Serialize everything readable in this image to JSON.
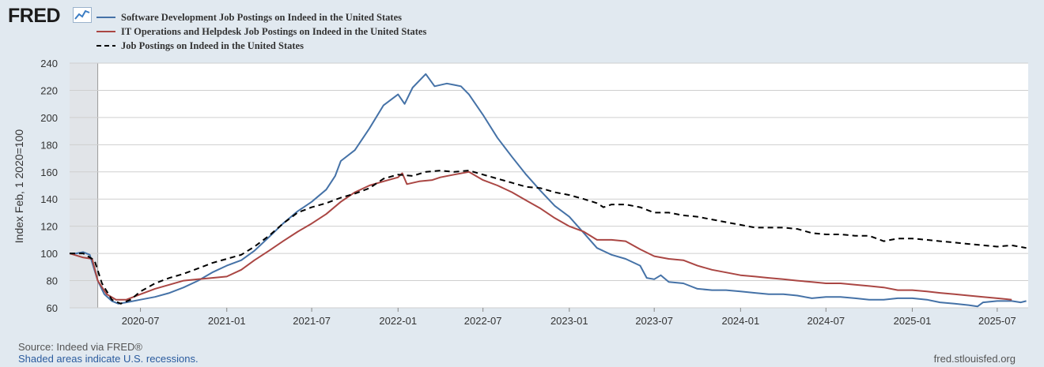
{
  "brand": {
    "logo_text": "FRED",
    "logo_icon": "chart-line-icon"
  },
  "footer": {
    "source": "Source: Indeed via FRED®",
    "recession_note": "Shaded areas indicate U.S. recessions.",
    "site": "fred.stlouisfed.org"
  },
  "chart_data": {
    "type": "line",
    "ylabel": "Index Feb, 1 2020=100",
    "ylim": [
      60,
      240
    ],
    "yticks": [
      60,
      80,
      100,
      120,
      140,
      160,
      180,
      200,
      220,
      240
    ],
    "xlim": [
      "2020-02-01",
      "2025-09-05"
    ],
    "xticks": [
      "2020-07",
      "2021-01",
      "2021-07",
      "2022-01",
      "2022-07",
      "2023-01",
      "2023-07",
      "2024-01",
      "2024-07",
      "2025-01",
      "2025-07"
    ],
    "grid": true,
    "legend_position": "top-left",
    "recessions": [
      {
        "start": "2020-02-01",
        "end": "2020-04-01"
      }
    ],
    "series": [
      {
        "name": "Software Development Job Postings on Indeed in the United States",
        "color": "#4572a7",
        "dash": "solid",
        "points": [
          [
            "2020-02-01",
            100
          ],
          [
            "2020-02-15",
            100
          ],
          [
            "2020-03-01",
            101
          ],
          [
            "2020-03-15",
            99
          ],
          [
            "2020-04-01",
            80
          ],
          [
            "2020-04-15",
            70
          ],
          [
            "2020-05-01",
            65
          ],
          [
            "2020-05-15",
            63
          ],
          [
            "2020-06-01",
            64
          ],
          [
            "2020-07-01",
            66
          ],
          [
            "2020-08-01",
            68
          ],
          [
            "2020-09-01",
            71
          ],
          [
            "2020-10-01",
            75
          ],
          [
            "2020-11-01",
            80
          ],
          [
            "2020-12-01",
            86
          ],
          [
            "2021-01-01",
            91
          ],
          [
            "2021-02-01",
            95
          ],
          [
            "2021-03-01",
            102
          ],
          [
            "2021-04-01",
            112
          ],
          [
            "2021-05-01",
            122
          ],
          [
            "2021-06-01",
            131
          ],
          [
            "2021-07-01",
            138
          ],
          [
            "2021-08-01",
            147
          ],
          [
            "2021-08-20",
            157
          ],
          [
            "2021-09-01",
            168
          ],
          [
            "2021-10-01",
            176
          ],
          [
            "2021-11-01",
            192
          ],
          [
            "2021-12-01",
            209
          ],
          [
            "2022-01-01",
            217
          ],
          [
            "2022-01-15",
            210
          ],
          [
            "2022-02-01",
            222
          ],
          [
            "2022-03-01",
            232
          ],
          [
            "2022-03-20",
            223
          ],
          [
            "2022-04-15",
            225
          ],
          [
            "2022-05-01",
            224
          ],
          [
            "2022-05-15",
            223
          ],
          [
            "2022-06-01",
            217
          ],
          [
            "2022-07-01",
            202
          ],
          [
            "2022-08-01",
            185
          ],
          [
            "2022-09-01",
            171
          ],
          [
            "2022-10-01",
            158
          ],
          [
            "2022-11-01",
            146
          ],
          [
            "2022-12-01",
            135
          ],
          [
            "2023-01-01",
            127
          ],
          [
            "2023-02-01",
            115
          ],
          [
            "2023-03-01",
            104
          ],
          [
            "2023-04-01",
            99
          ],
          [
            "2023-05-01",
            96
          ],
          [
            "2023-06-01",
            91
          ],
          [
            "2023-06-15",
            82
          ],
          [
            "2023-07-01",
            81
          ],
          [
            "2023-07-15",
            84
          ],
          [
            "2023-08-01",
            79
          ],
          [
            "2023-09-01",
            78
          ],
          [
            "2023-10-01",
            74
          ],
          [
            "2023-11-01",
            73
          ],
          [
            "2023-12-01",
            73
          ],
          [
            "2024-01-01",
            72
          ],
          [
            "2024-02-01",
            71
          ],
          [
            "2024-03-01",
            70
          ],
          [
            "2024-04-01",
            70
          ],
          [
            "2024-05-01",
            69
          ],
          [
            "2024-06-01",
            67
          ],
          [
            "2024-07-01",
            68
          ],
          [
            "2024-08-01",
            68
          ],
          [
            "2024-09-01",
            67
          ],
          [
            "2024-10-01",
            66
          ],
          [
            "2024-11-01",
            66
          ],
          [
            "2024-12-01",
            67
          ],
          [
            "2025-01-01",
            67
          ],
          [
            "2025-02-01",
            66
          ],
          [
            "2025-03-01",
            64
          ],
          [
            "2025-04-01",
            63
          ],
          [
            "2025-05-01",
            62
          ],
          [
            "2025-05-20",
            61
          ],
          [
            "2025-06-01",
            64
          ],
          [
            "2025-07-01",
            65
          ],
          [
            "2025-08-01",
            65
          ],
          [
            "2025-08-20",
            64
          ],
          [
            "2025-09-01",
            65
          ]
        ]
      },
      {
        "name": "IT Operations and Helpdesk Job Postings on Indeed in the United States",
        "color": "#aa4643",
        "dash": "solid",
        "points": [
          [
            "2020-02-01",
            100
          ],
          [
            "2020-03-01",
            97
          ],
          [
            "2020-03-20",
            96
          ],
          [
            "2020-04-01",
            80
          ],
          [
            "2020-04-20",
            70
          ],
          [
            "2020-05-10",
            66
          ],
          [
            "2020-06-01",
            66
          ],
          [
            "2020-07-01",
            70
          ],
          [
            "2020-08-01",
            74
          ],
          [
            "2020-09-01",
            77
          ],
          [
            "2020-10-01",
            80
          ],
          [
            "2020-11-01",
            81
          ],
          [
            "2020-12-01",
            82
          ],
          [
            "2021-01-01",
            83
          ],
          [
            "2021-02-01",
            88
          ],
          [
            "2021-03-01",
            95
          ],
          [
            "2021-04-01",
            102
          ],
          [
            "2021-05-01",
            109
          ],
          [
            "2021-06-01",
            116
          ],
          [
            "2021-07-01",
            122
          ],
          [
            "2021-08-01",
            129
          ],
          [
            "2021-09-01",
            138
          ],
          [
            "2021-10-01",
            145
          ],
          [
            "2021-11-01",
            150
          ],
          [
            "2021-12-01",
            153
          ],
          [
            "2022-01-01",
            156
          ],
          [
            "2022-01-10",
            159
          ],
          [
            "2022-01-20",
            151
          ],
          [
            "2022-02-15",
            153
          ],
          [
            "2022-03-15",
            154
          ],
          [
            "2022-04-01",
            156
          ],
          [
            "2022-05-01",
            158
          ],
          [
            "2022-06-01",
            160
          ],
          [
            "2022-07-01",
            154
          ],
          [
            "2022-08-01",
            150
          ],
          [
            "2022-09-01",
            145
          ],
          [
            "2022-10-01",
            139
          ],
          [
            "2022-11-01",
            133
          ],
          [
            "2022-12-01",
            126
          ],
          [
            "2023-01-01",
            120
          ],
          [
            "2023-02-01",
            116
          ],
          [
            "2023-03-01",
            110
          ],
          [
            "2023-04-01",
            110
          ],
          [
            "2023-05-01",
            109
          ],
          [
            "2023-06-01",
            103
          ],
          [
            "2023-07-01",
            98
          ],
          [
            "2023-08-01",
            96
          ],
          [
            "2023-09-01",
            95
          ],
          [
            "2023-10-01",
            91
          ],
          [
            "2023-11-01",
            88
          ],
          [
            "2023-12-01",
            86
          ],
          [
            "2024-01-01",
            84
          ],
          [
            "2024-02-01",
            83
          ],
          [
            "2024-03-01",
            82
          ],
          [
            "2024-04-01",
            81
          ],
          [
            "2024-05-01",
            80
          ],
          [
            "2024-06-01",
            79
          ],
          [
            "2024-07-01",
            78
          ],
          [
            "2024-08-01",
            78
          ],
          [
            "2024-09-01",
            77
          ],
          [
            "2024-10-01",
            76
          ],
          [
            "2024-11-01",
            75
          ],
          [
            "2024-12-01",
            73
          ],
          [
            "2025-01-01",
            73
          ],
          [
            "2025-02-01",
            72
          ],
          [
            "2025-03-01",
            71
          ],
          [
            "2025-04-01",
            70
          ],
          [
            "2025-05-01",
            69
          ],
          [
            "2025-06-01",
            68
          ],
          [
            "2025-07-01",
            67
          ],
          [
            "2025-08-01",
            66
          ]
        ]
      },
      {
        "name": "Job Postings on Indeed in the United States",
        "color": "#000000",
        "dash": "dashed",
        "points": [
          [
            "2020-02-01",
            100
          ],
          [
            "2020-03-01",
            100
          ],
          [
            "2020-03-25",
            95
          ],
          [
            "2020-04-10",
            78
          ],
          [
            "2020-05-01",
            66
          ],
          [
            "2020-05-20",
            63
          ],
          [
            "2020-06-10",
            66
          ],
          [
            "2020-07-01",
            72
          ],
          [
            "2020-08-01",
            78
          ],
          [
            "2020-09-01",
            82
          ],
          [
            "2020-10-01",
            85
          ],
          [
            "2020-11-01",
            89
          ],
          [
            "2020-12-01",
            93
          ],
          [
            "2021-01-01",
            96
          ],
          [
            "2021-02-01",
            99
          ],
          [
            "2021-03-01",
            105
          ],
          [
            "2021-04-01",
            113
          ],
          [
            "2021-05-01",
            122
          ],
          [
            "2021-06-01",
            130
          ],
          [
            "2021-07-01",
            134
          ],
          [
            "2021-08-01",
            137
          ],
          [
            "2021-09-01",
            141
          ],
          [
            "2021-10-01",
            144
          ],
          [
            "2021-11-01",
            148
          ],
          [
            "2021-12-01",
            155
          ],
          [
            "2022-01-01",
            158
          ],
          [
            "2022-02-01",
            157
          ],
          [
            "2022-03-01",
            160
          ],
          [
            "2022-04-01",
            161
          ],
          [
            "2022-05-01",
            160
          ],
          [
            "2022-06-01",
            161
          ],
          [
            "2022-07-01",
            158
          ],
          [
            "2022-08-01",
            155
          ],
          [
            "2022-09-01",
            152
          ],
          [
            "2022-10-01",
            149
          ],
          [
            "2022-11-01",
            148
          ],
          [
            "2022-12-01",
            145
          ],
          [
            "2023-01-01",
            143
          ],
          [
            "2023-02-01",
            140
          ],
          [
            "2023-03-01",
            137
          ],
          [
            "2023-03-15",
            134
          ],
          [
            "2023-04-01",
            136
          ],
          [
            "2023-05-01",
            136
          ],
          [
            "2023-06-01",
            134
          ],
          [
            "2023-07-01",
            130
          ],
          [
            "2023-08-01",
            130
          ],
          [
            "2023-09-01",
            128
          ],
          [
            "2023-10-01",
            127
          ],
          [
            "2023-11-01",
            125
          ],
          [
            "2023-12-01",
            123
          ],
          [
            "2024-01-01",
            121
          ],
          [
            "2024-02-01",
            119
          ],
          [
            "2024-03-01",
            119
          ],
          [
            "2024-04-01",
            119
          ],
          [
            "2024-05-01",
            118
          ],
          [
            "2024-06-01",
            115
          ],
          [
            "2024-07-01",
            114
          ],
          [
            "2024-08-01",
            114
          ],
          [
            "2024-09-01",
            113
          ],
          [
            "2024-10-01",
            113
          ],
          [
            "2024-11-01",
            109
          ],
          [
            "2024-12-01",
            111
          ],
          [
            "2025-01-01",
            111
          ],
          [
            "2025-02-01",
            110
          ],
          [
            "2025-03-01",
            109
          ],
          [
            "2025-04-01",
            108
          ],
          [
            "2025-05-01",
            107
          ],
          [
            "2025-06-01",
            106
          ],
          [
            "2025-07-01",
            105
          ],
          [
            "2025-08-01",
            106
          ],
          [
            "2025-09-01",
            104
          ]
        ]
      }
    ]
  }
}
